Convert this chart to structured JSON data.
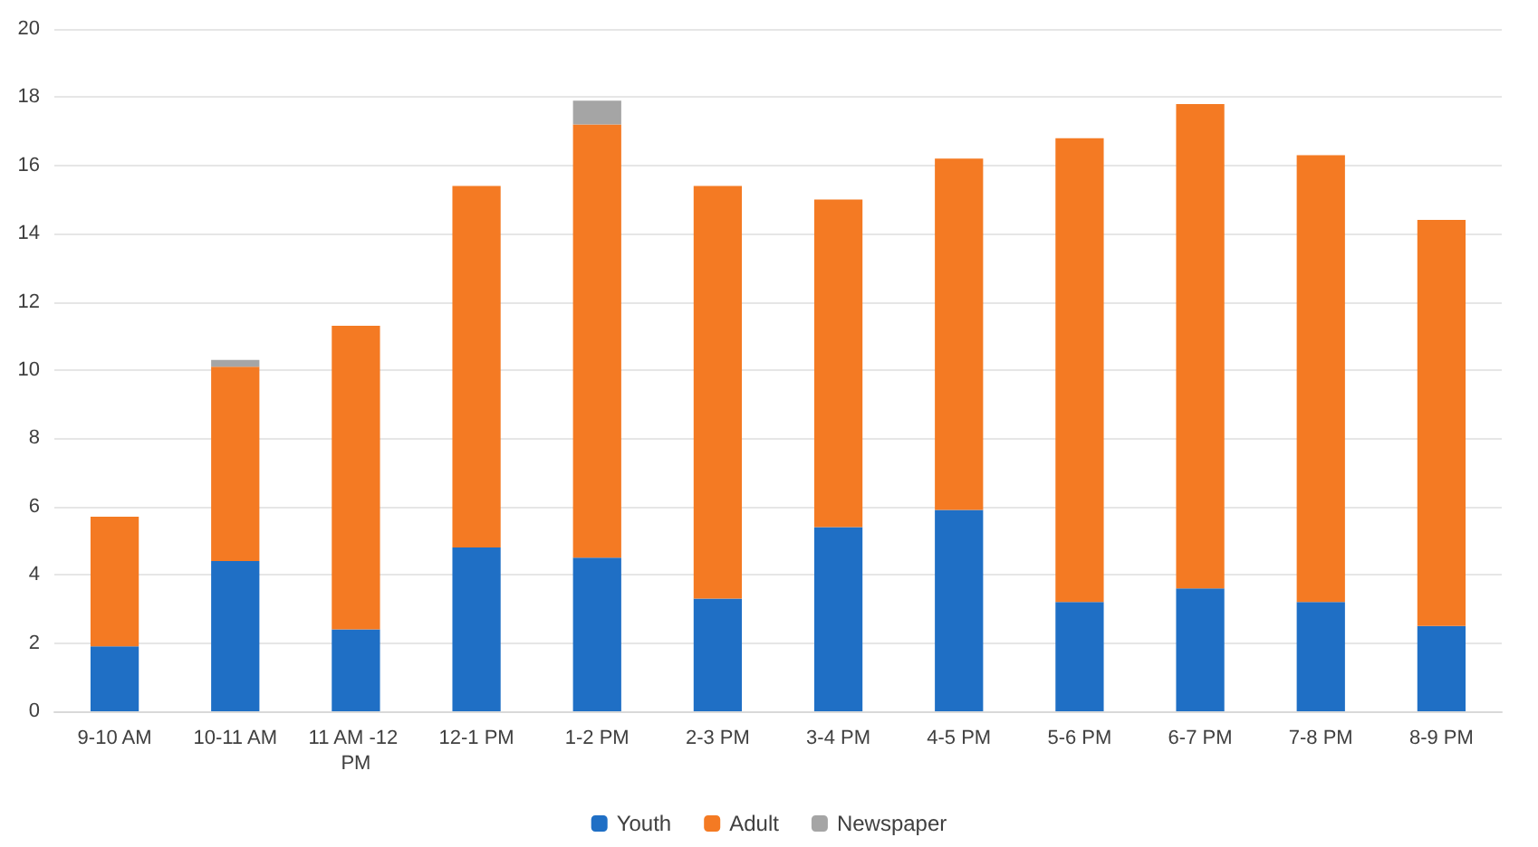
{
  "chart_data": {
    "type": "bar",
    "stacked": true,
    "categories": [
      "9-10 AM",
      "10-11 AM",
      "11 AM -12 PM",
      "12-1 PM",
      "1-2 PM",
      "2-3 PM",
      "3-4 PM",
      "4-5 PM",
      "5-6 PM",
      "6-7 PM",
      "7-8 PM",
      "8-9 PM"
    ],
    "series": [
      {
        "name": "Youth",
        "color": "#1f6fc5",
        "values": [
          1.9,
          4.4,
          2.4,
          4.8,
          4.5,
          3.3,
          5.4,
          5.9,
          3.2,
          3.6,
          3.2,
          2.5
        ]
      },
      {
        "name": "Adult",
        "color": "#f47a23",
        "values": [
          3.8,
          5.7,
          8.9,
          10.6,
          12.7,
          12.1,
          9.6,
          10.3,
          13.6,
          14.2,
          13.1,
          11.9
        ]
      },
      {
        "name": "Newspaper",
        "color": "#a5a5a5",
        "values": [
          null,
          0.2,
          null,
          null,
          0.7,
          null,
          null,
          null,
          null,
          null,
          null,
          null
        ]
      }
    ],
    "ylim": [
      0,
      20
    ],
    "yticks": [
      0,
      2,
      4,
      6,
      8,
      10,
      12,
      14,
      16,
      18,
      20
    ],
    "grid": "y",
    "legend": "bottom"
  }
}
